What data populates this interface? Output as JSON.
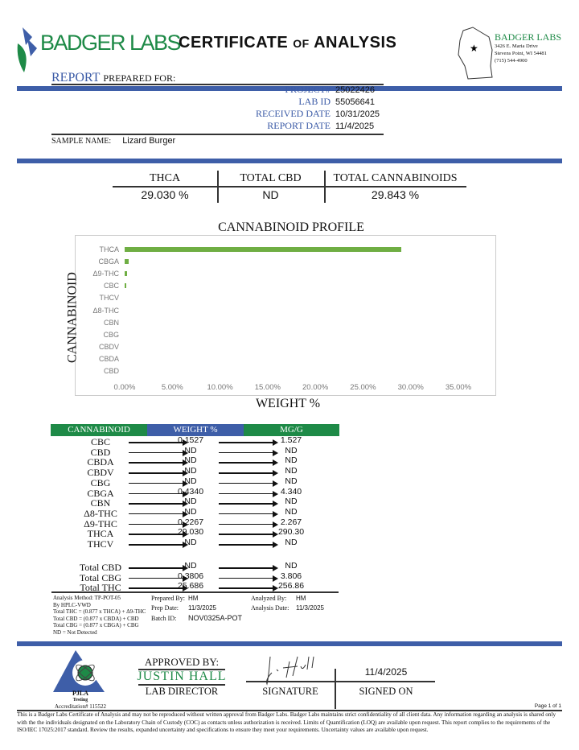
{
  "header": {
    "logo_text": "BADGER LABS",
    "title_main1": "CERTIFICATE",
    "title_of": "of",
    "title_main2": "ANALYSIS",
    "lab_name": "BADGER LABS",
    "address1": "3426 E. Maria Drive",
    "address2": "Stevens Point, WI 54481",
    "phone": "(715) 544-4900"
  },
  "report": {
    "label_report": "REPORT",
    "label_prepared": "PREPARED FOR:",
    "fields": [
      {
        "label": "PROJECT#",
        "value": "25022426"
      },
      {
        "label": "LAB ID",
        "value": "55056641"
      },
      {
        "label": "RECEIVED DATE",
        "value": "10/31/2025"
      },
      {
        "label": "REPORT DATE",
        "value": "11/4/2025"
      }
    ],
    "sample_label": "SAMPLE NAME:",
    "sample_name": "Lizard Burger"
  },
  "summary": {
    "headers": [
      "THCA",
      "TOTAL CBD",
      "TOTAL CANNABINOIDS"
    ],
    "values": [
      "29.030 %",
      "ND",
      "29.843 %"
    ]
  },
  "chart_data": {
    "type": "bar",
    "orientation": "horizontal",
    "title": "CANNABINOID PROFILE",
    "xlabel": "WEIGHT %",
    "ylabel": "CANNABINOID",
    "categories": [
      "THCA",
      "CBGA",
      "Δ9-THC",
      "CBC",
      "THCV",
      "Δ8-THC",
      "CBN",
      "CBG",
      "CBDV",
      "CBDA",
      "CBD"
    ],
    "values": [
      29.03,
      0.434,
      0.2267,
      0.1527,
      0,
      0,
      0,
      0,
      0,
      0,
      0
    ],
    "xlim": [
      0,
      35
    ],
    "xticks": [
      "0.00%",
      "5.00%",
      "10.00%",
      "15.00%",
      "20.00%",
      "25.00%",
      "30.00%",
      "35.00%"
    ],
    "color": "#6fae43",
    "grid": false
  },
  "results": {
    "headers": [
      "CANNABINOID",
      "WEIGHT %",
      "MG/G"
    ],
    "header_colors": [
      "#1e8a47",
      "#3e5ea8",
      "#1e8a47"
    ],
    "rows": [
      [
        "CBC",
        "0.1527",
        "1.527"
      ],
      [
        "CBD",
        "ND",
        "ND"
      ],
      [
        "CBDA",
        "ND",
        "ND"
      ],
      [
        "CBDV",
        "ND",
        "ND"
      ],
      [
        "CBG",
        "ND",
        "ND"
      ],
      [
        "CBGA",
        "0.4340",
        "4.340"
      ],
      [
        "CBN",
        "ND",
        "ND"
      ],
      [
        "Δ8-THC",
        "ND",
        "ND"
      ],
      [
        "Δ9-THC",
        "0.2267",
        "2.267"
      ],
      [
        "THCA",
        "29.030",
        "290.30"
      ],
      [
        "THCV",
        "ND",
        "ND"
      ]
    ],
    "totals": [
      [
        "Total CBD",
        "ND",
        "ND"
      ],
      [
        "Total CBG",
        "0.3806",
        "3.806"
      ],
      [
        "Total THC",
        "25.686",
        "256.86"
      ]
    ]
  },
  "notes": {
    "method": [
      "Analysis Method: TP-POT-05",
      "By HPLC-VWD",
      "Total THC = (0.877 x  THCA) + Δ9-THC",
      "Total CBD = (0.877 x  CBDA) + CBD",
      "Total CBG = (0.877 x  CBGA) + CBG",
      "ND = Not Detected"
    ],
    "prepared_by_label": "Prepared By:",
    "prepared_by": "HM",
    "prep_date_label": "Prep Date:",
    "prep_date": "11/3/2025",
    "batch_label": "Batch ID:",
    "batch": "NOV0325A-POT",
    "analyzed_by_label": "Analyzed By:",
    "analyzed_by": "HM",
    "analysis_date_label": "Analysis Date:",
    "analysis_date": "11/3/2025"
  },
  "approval": {
    "pjla": "PJLA",
    "testing": "Testing",
    "accreditation": "Accreditation# 115522",
    "approved_by": "APPROVED BY:",
    "name": "JUSTIN HALL",
    "role": "LAB DIRECTOR",
    "signature_label": "SIGNATURE",
    "signed_on": "11/4/2025",
    "signed_on_label": "SIGNED ON",
    "page": "Page 1 of 1"
  },
  "disclaimer": "This is a Badger Labs Certificate of Analysis and may not be reproduced without written approval from Badger Labs. Badger Labs maintains strict confidentiality of all client data. Any information regarding an analysis is shared only with the the individuals designated on the Laboratory Chain of Custody (COC) as contacts unless authorization is received. Limits of Quantification (LOQ) are available upon request. This report complies to the requirements of the ISO/IEC 17025:2017 standard. Review the results, expanded uncertainty and specifications to ensure they meet your requirements. Uncertainty values are available upon request."
}
